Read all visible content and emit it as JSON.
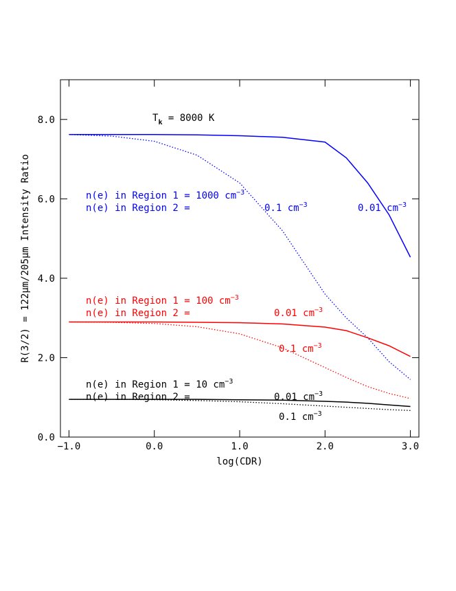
{
  "chart_data": {
    "type": "line",
    "title": {
      "main": "T",
      "sub": "k",
      "after": " = 8000 K"
    },
    "xlabel": "log(CDR)",
    "ylabel": "R(3/2) = 122μm/205μm Intensity Ratio",
    "x": [
      -1,
      -0.5,
      0,
      0.5,
      1,
      1.5,
      2,
      2.25,
      2.5,
      2.75,
      3
    ],
    "xlim": [
      -1.1,
      3.1
    ],
    "xticks": [
      {
        "value": -1,
        "label": "−1.0"
      },
      {
        "value": 0,
        "label": "0.0"
      },
      {
        "value": 1,
        "label": "1.0"
      },
      {
        "value": 2,
        "label": "2.0"
      },
      {
        "value": 3,
        "label": "3.0"
      }
    ],
    "ylim": [
      0,
      9
    ],
    "yticks": [
      {
        "value": 0,
        "label": "0.0"
      },
      {
        "value": 2,
        "label": "2.0"
      },
      {
        "value": 4,
        "label": "4.0"
      },
      {
        "value": 6,
        "label": "6.0"
      },
      {
        "value": 8,
        "label": "8.0"
      }
    ],
    "series": [
      {
        "color": "#0000ff",
        "style": "solid",
        "values": [
          7.62,
          7.62,
          7.62,
          7.61,
          7.59,
          7.55,
          7.43,
          7.03,
          6.4,
          5.6,
          4.53
        ]
      },
      {
        "color": "#0000ff",
        "style": "dotted",
        "values": [
          7.62,
          7.58,
          7.45,
          7.1,
          6.4,
          5.2,
          3.6,
          3.0,
          2.5,
          1.9,
          1.45
        ]
      },
      {
        "color": "#ff0000",
        "style": "solid",
        "values": [
          2.9,
          2.9,
          2.9,
          2.89,
          2.88,
          2.85,
          2.77,
          2.68,
          2.5,
          2.3,
          2.03
        ]
      },
      {
        "color": "#ff0000",
        "style": "dotted",
        "values": [
          2.9,
          2.89,
          2.86,
          2.78,
          2.6,
          2.25,
          1.75,
          1.5,
          1.27,
          1.1,
          0.97
        ]
      },
      {
        "color": "#000000",
        "style": "solid",
        "values": [
          0.95,
          0.95,
          0.95,
          0.95,
          0.94,
          0.93,
          0.9,
          0.88,
          0.85,
          0.81,
          0.77
        ]
      },
      {
        "color": "#000000",
        "style": "dotted",
        "values": [
          0.95,
          0.95,
          0.94,
          0.92,
          0.89,
          0.84,
          0.78,
          0.75,
          0.72,
          0.69,
          0.67
        ]
      }
    ],
    "annotations": [
      {
        "text": "n(e) in Region 1 = 1000 cm",
        "sup": "−3",
        "color": "#0000ff"
      },
      {
        "text": "n(e) in Region 2 =",
        "color": "#0000ff"
      },
      {
        "text": "0.1 cm",
        "sup": "−3",
        "color": "#0000ff"
      },
      {
        "text": "0.01 cm",
        "sup": "−3",
        "color": "#0000ff"
      },
      {
        "text": "n(e) in Region 1 = 100 cm",
        "sup": "−3",
        "color": "#ff0000"
      },
      {
        "text": "n(e) in Region 2 =",
        "color": "#ff0000"
      },
      {
        "text": "0.01 cm",
        "sup": "−3",
        "color": "#ff0000"
      },
      {
        "text": "0.1 cm",
        "sup": "−3",
        "color": "#ff0000"
      },
      {
        "text": "n(e) in Region 1 = 10 cm",
        "sup": "−3",
        "color": "#000000"
      },
      {
        "text": "n(e) in Region 2 =",
        "color": "#000000"
      },
      {
        "text": "0.01 cm",
        "sup": "−3",
        "color": "#000000"
      },
      {
        "text": "0.1 cm",
        "sup": "−3",
        "color": "#000000"
      }
    ]
  }
}
